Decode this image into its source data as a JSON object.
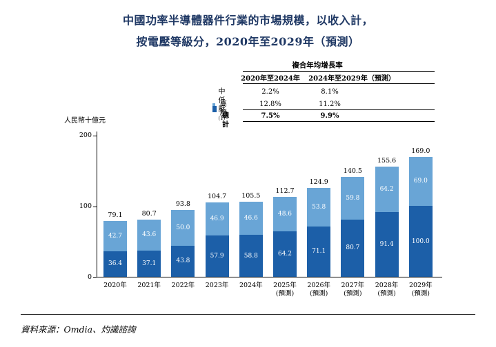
{
  "title": {
    "line1": "中國功率半導體器件行業的市場規模，以收入計，",
    "line2": "按電壓等級分，2020年至2029年（預測）"
  },
  "cagr_table": {
    "title": "複合年均增長率",
    "columns": [
      "2020年至2024年",
      "2024年至2029年（預測）"
    ],
    "rows": [
      {
        "label": "中低壓",
        "sup": "(1)",
        "values": [
          "2.2%",
          "8.1%"
        ]
      },
      {
        "label": "高壓",
        "sup": "",
        "values": [
          "12.8%",
          "11.2%"
        ]
      },
      {
        "label": "總計",
        "sup": "",
        "values": [
          "7.5%",
          "9.9%"
        ]
      }
    ]
  },
  "chart": {
    "y_axis_label": "人民幣十億元"
  },
  "chart_data": {
    "type": "bar",
    "stacked": true,
    "title": "中國功率半導體器件行業的市場規模，以收入計，按電壓等級分，2020年至2029年（預測）",
    "ylabel": "人民幣十億元",
    "ylim": [
      0,
      200
    ],
    "y_ticks": [
      0,
      100,
      200
    ],
    "grid": false,
    "legend_position": "top-left-of-table",
    "categories": [
      "2020年",
      "2021年",
      "2022年",
      "2023年",
      "2024年",
      "2025年\n(預測)",
      "2026年\n(預測)",
      "2027年\n(預測)",
      "2028年\n(預測)",
      "2029年\n(預測)"
    ],
    "series": [
      {
        "name": "高壓",
        "color": "#1C5FA8",
        "values": [
          36.4,
          37.1,
          43.8,
          57.9,
          58.8,
          64.2,
          71.1,
          80.7,
          91.4,
          100.0
        ]
      },
      {
        "name": "中低壓",
        "color": "#69A5D6",
        "values": [
          42.7,
          43.6,
          50.0,
          46.9,
          46.6,
          48.6,
          53.8,
          59.8,
          64.2,
          69.0
        ]
      }
    ],
    "totals": [
      79.1,
      80.7,
      93.8,
      104.7,
      105.5,
      112.7,
      124.9,
      140.5,
      155.6,
      169.0
    ]
  },
  "source": "資料來源：Omdia、灼識諮詢"
}
